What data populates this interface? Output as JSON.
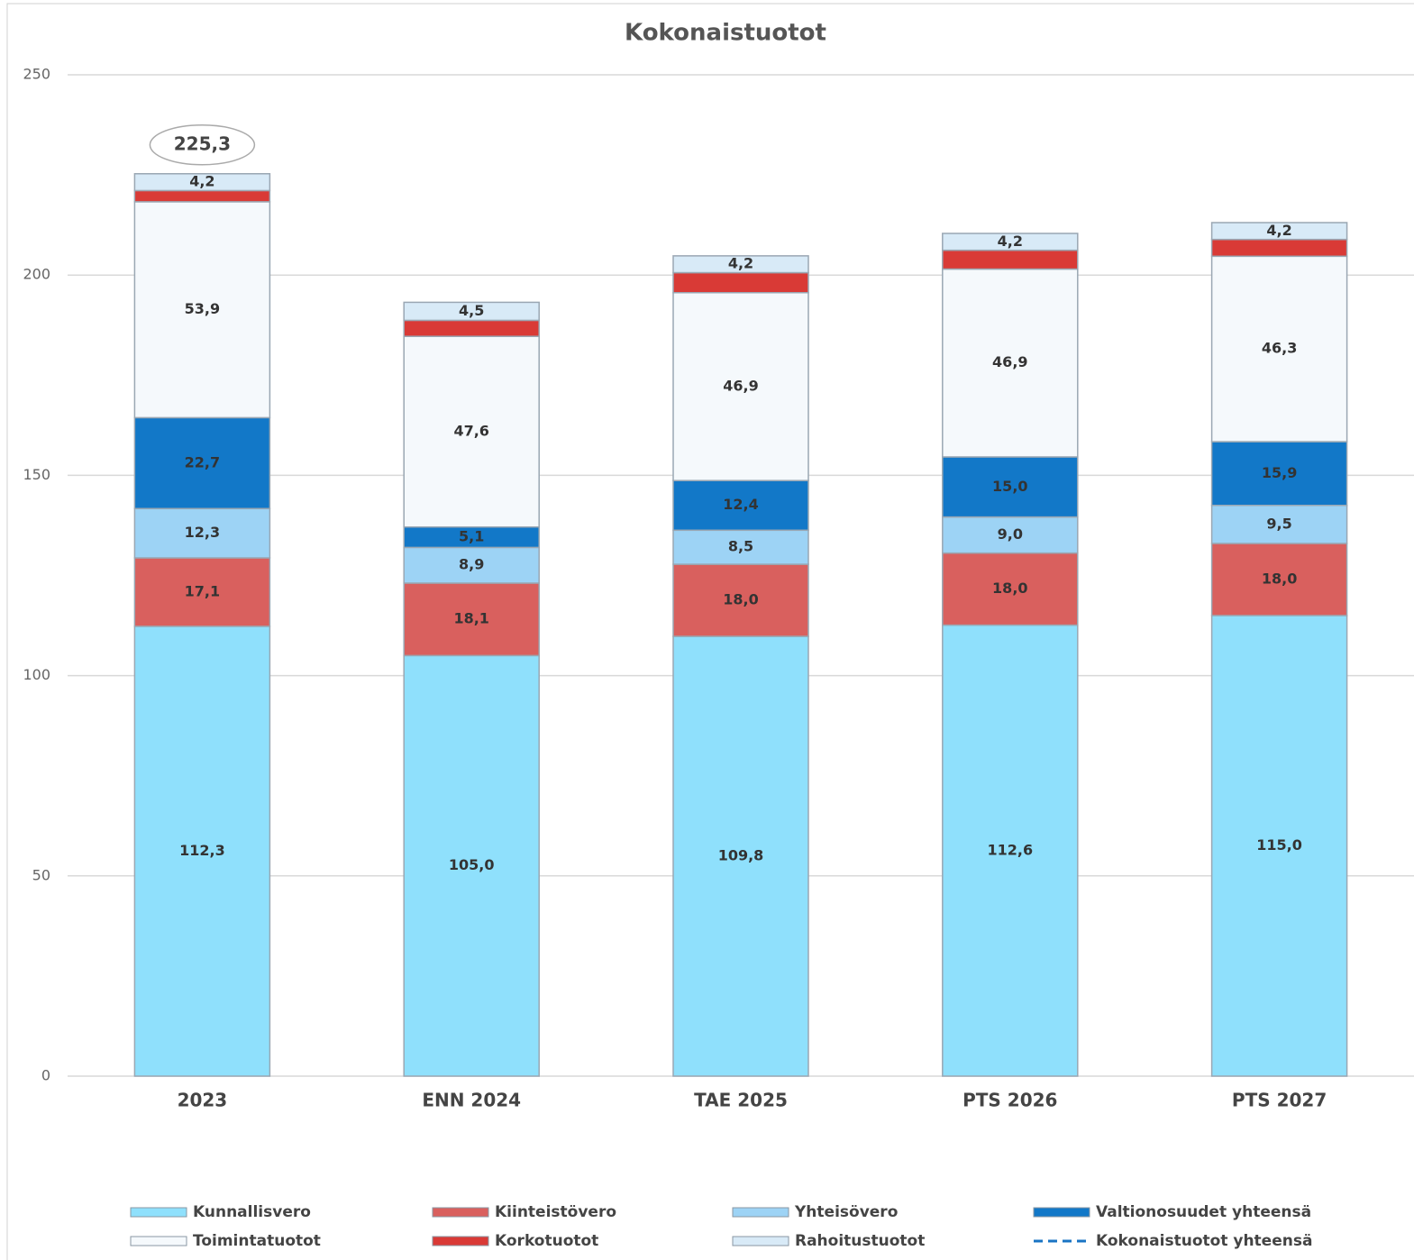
{
  "chart_data": {
    "type": "stacked-bar",
    "title": "Kokonaistuotot",
    "categories": [
      "2023",
      "ENN 2024",
      "TAE 2025",
      "PTS 2026",
      "PTS 2027"
    ],
    "ylim": [
      0,
      250
    ],
    "yticks": [
      0,
      50,
      100,
      150,
      200,
      250
    ],
    "grid": true,
    "legend": "bottom",
    "series": [
      {
        "name": "Kunnallisvero",
        "color": "#8fe0fc",
        "values": [
          112.3,
          105.0,
          109.8,
          112.6,
          115.0
        ],
        "value_labels": [
          "112,3",
          "105,0",
          "109,8",
          "112,6",
          "115,0"
        ]
      },
      {
        "name": "Kiinteistövero",
        "color": "#d9605e",
        "values": [
          17.1,
          18.1,
          18.0,
          18.0,
          18.0
        ],
        "value_labels": [
          "17,1",
          "18,1",
          "18,0",
          "18,0",
          "18,0"
        ]
      },
      {
        "name": "Yhteisövero",
        "color": "#9dd3f5",
        "values": [
          12.3,
          8.9,
          8.5,
          9.0,
          9.5
        ],
        "value_labels": [
          "12,3",
          "8,9",
          "8,5",
          "9,0",
          "9,5"
        ]
      },
      {
        "name": "Valtionosuudet yhteensä",
        "color": "#1278c8",
        "values": [
          22.7,
          5.1,
          12.4,
          15.0,
          15.9
        ],
        "value_labels": [
          "22,7",
          "5,1",
          "12,4",
          "15,0",
          "15,9"
        ]
      },
      {
        "name": "Toimintatuotot",
        "color": "#f5f9fc",
        "values": [
          53.9,
          47.6,
          46.9,
          46.9,
          46.3
        ],
        "value_labels": [
          "53,9",
          "47,6",
          "46,9",
          "46,9",
          "46,3"
        ]
      },
      {
        "name": "Korkotuotot",
        "color": "#d93a36",
        "values": [
          2.8,
          4.0,
          5.0,
          4.7,
          4.2
        ]
      },
      {
        "name": "Rahoitustuotot",
        "color": "#d8eaf7",
        "values": [
          4.2,
          4.5,
          4.2,
          4.2,
          4.2
        ],
        "value_labels": [
          "4,2",
          "4,5",
          "4,2",
          "4,2",
          "4,2"
        ]
      }
    ],
    "total_series": {
      "name": "Kokonaistuotot yhteensä",
      "color": "#1a74c4",
      "values": [
        225.3,
        null,
        null,
        null,
        null
      ],
      "value_labels": [
        "225,3",
        null,
        null,
        null,
        null
      ]
    }
  }
}
